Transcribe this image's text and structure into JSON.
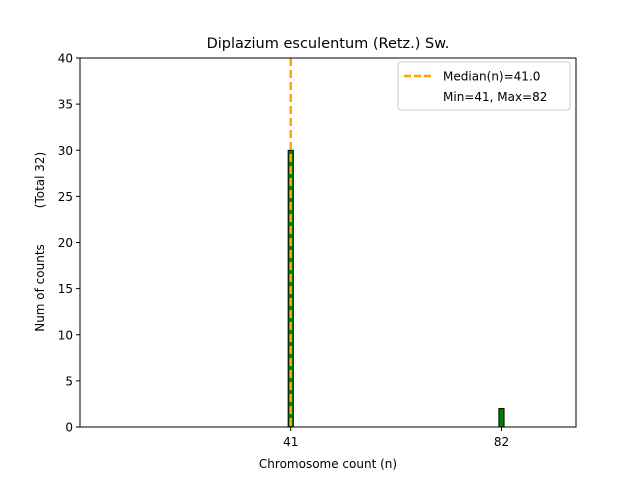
{
  "chart_data": {
    "type": "bar",
    "title": "Diplazium esculentum (Retz.) Sw.",
    "xlabel": "Chromosome count (n)",
    "ylabel": "Num of counts",
    "ylabel_note": "(Total 32)",
    "xlim": [
      0,
      96.5
    ],
    "ylim": [
      0,
      40
    ],
    "x_ticks": [
      41,
      82
    ],
    "y_ticks": [
      0,
      5,
      10,
      15,
      20,
      25,
      30,
      35,
      40
    ],
    "bar_width": 1,
    "bars": [
      {
        "x": 41,
        "value": 30
      },
      {
        "x": 82,
        "value": 2
      }
    ],
    "median": 41.0,
    "legend": {
      "position": "top-right",
      "median_label": "Median(n)=41.0",
      "range_label": "Min=41, Max=82"
    },
    "colors": {
      "bar_fill": "#008000",
      "bar_edge": "#000000",
      "median_line": "#ffa500"
    }
  }
}
